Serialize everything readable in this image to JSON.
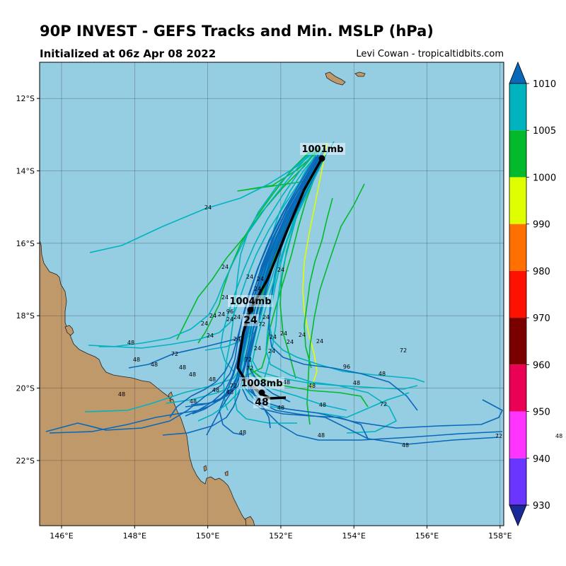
{
  "header": {
    "title": "90P INVEST - GEFS Tracks and Min. MSLP (hPa)",
    "subtitle": "Initialized at 06z Apr 08 2022",
    "credit": "Levi Cowan - tropicaltidbits.com"
  },
  "map": {
    "lon_range": [
      145.4,
      158.1
    ],
    "lat_range": [
      -23.8,
      -11.0
    ],
    "lon_ticks": [
      "146°E",
      "148°E",
      "150°E",
      "152°E",
      "154°E",
      "156°E",
      "158°E"
    ],
    "lat_ticks": [
      "12°S",
      "14°S",
      "16°S",
      "18°S",
      "20°S",
      "22°S"
    ],
    "ocean_color": "#95cde3",
    "land_color": "#c0996b"
  },
  "ensemble_mean": {
    "mslp_labels": [
      "1001mb",
      "1004mb",
      "1008mb"
    ],
    "hour_labels": [
      "24",
      "48"
    ]
  },
  "member_hour_labels": [
    "24",
    "24",
    "24",
    "24",
    "24",
    "24",
    "24",
    "24",
    "24",
    "24",
    "24",
    "24",
    "24",
    "24",
    "24",
    "24",
    "24",
    "24",
    "24",
    "24",
    "24",
    "24",
    "48",
    "48",
    "48",
    "48",
    "48",
    "48",
    "48",
    "48",
    "48",
    "48",
    "48",
    "48",
    "48",
    "48",
    "48",
    "48",
    "48",
    "48",
    "48",
    "72",
    "72",
    "72",
    "72",
    "72",
    "72",
    "72",
    "96",
    "96"
  ],
  "colorbar": {
    "labels": [
      "1010",
      "1005",
      "1000",
      "990",
      "980",
      "970",
      "960",
      "950",
      "940",
      "930"
    ],
    "colors": [
      "#0a68b8",
      "#00b3bf",
      "#03b92c",
      "#dfff00",
      "#ff7000",
      "#ff1100",
      "#7a0000",
      "#ea0055",
      "#ff34ff",
      "#6a35ff",
      "#1a2a9a"
    ],
    "edge_label": "48"
  }
}
